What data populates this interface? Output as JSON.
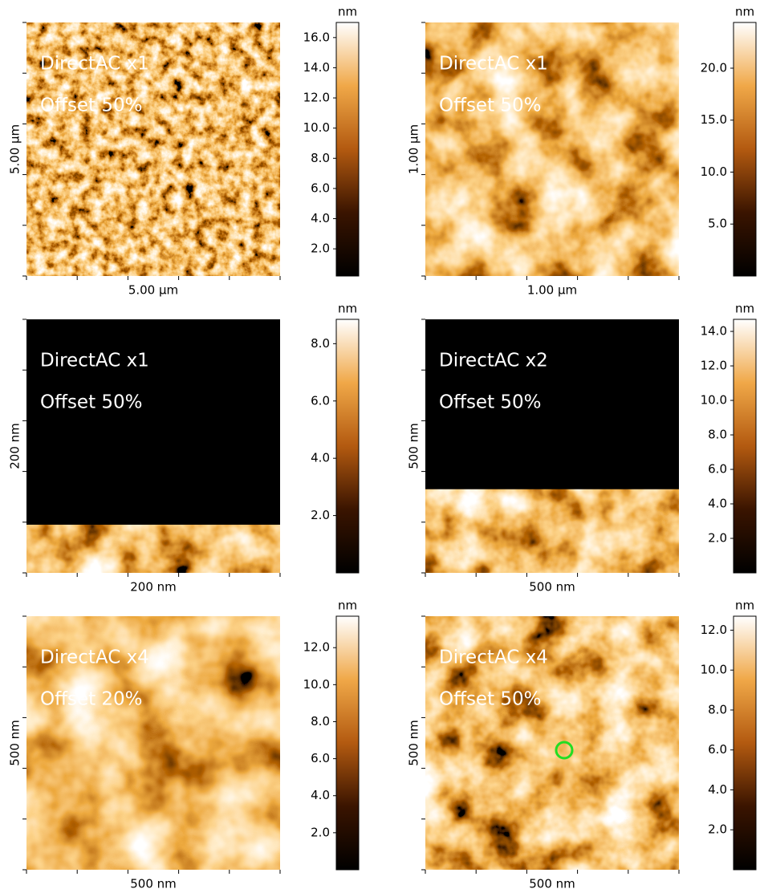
{
  "panels": [
    {
      "overlay": [
        "DirectAC x1",
        "Offset 50%"
      ],
      "y_label": "5.00 µm",
      "x_label": "5.00 µm",
      "colorbar": {
        "unit": "nm",
        "range": [
          0.2,
          17.0
        ],
        "ticks": [
          {
            "value": 2,
            "label": "2.0"
          },
          {
            "value": 4,
            "label": "4.0"
          },
          {
            "value": 6,
            "label": "6.0"
          },
          {
            "value": 8,
            "label": "8.0"
          },
          {
            "value": 10,
            "label": "10.0"
          },
          {
            "value": 12,
            "label": "12.0"
          },
          {
            "value": 14,
            "label": "14.0"
          },
          {
            "value": 16,
            "label": "16.0"
          }
        ]
      }
    },
    {
      "overlay": [
        "DirectAC x1",
        "Offset 50%"
      ],
      "y_label": "1.00 µm",
      "x_label": "1.00 µm",
      "colorbar": {
        "unit": "nm",
        "range": [
          0,
          24.4
        ],
        "ticks": [
          {
            "value": 5,
            "label": "5.0"
          },
          {
            "value": 10,
            "label": "10.0"
          },
          {
            "value": 15,
            "label": "15.0"
          },
          {
            "value": 20,
            "label": "20.0"
          }
        ]
      }
    },
    {
      "overlay": [
        "DirectAC x1",
        "Offset 50%"
      ],
      "y_label": "200 nm",
      "x_label": "200 nm",
      "colorbar": {
        "unit": "nm",
        "range": [
          0,
          8.85
        ],
        "ticks": [
          {
            "value": 2,
            "label": "2.0"
          },
          {
            "value": 4,
            "label": "4.0"
          },
          {
            "value": 6,
            "label": "6.0"
          },
          {
            "value": 8,
            "label": "8.0"
          }
        ]
      }
    },
    {
      "overlay": [
        "DirectAC x2",
        "Offset 50%"
      ],
      "y_label": "500 nm",
      "x_label": "500 nm",
      "colorbar": {
        "unit": "nm",
        "range": [
          0,
          14.7
        ],
        "ticks": [
          {
            "value": 2,
            "label": "2.0"
          },
          {
            "value": 4,
            "label": "4.0"
          },
          {
            "value": 6,
            "label": "6.0"
          },
          {
            "value": 8,
            "label": "8.0"
          },
          {
            "value": 10,
            "label": "10.0"
          },
          {
            "value": 12,
            "label": "12.0"
          },
          {
            "value": 14,
            "label": "14.0"
          }
        ]
      }
    },
    {
      "overlay": [
        "DirectAC x4",
        "Offset 20%"
      ],
      "y_label": "500 nm",
      "x_label": "500 nm",
      "colorbar": {
        "unit": "nm",
        "range": [
          0,
          13.7
        ],
        "ticks": [
          {
            "value": 2,
            "label": "2.0"
          },
          {
            "value": 4,
            "label": "4.0"
          },
          {
            "value": 6,
            "label": "6.0"
          },
          {
            "value": 8,
            "label": "8.0"
          },
          {
            "value": 10,
            "label": "10.0"
          },
          {
            "value": 12,
            "label": "12.0"
          }
        ]
      }
    },
    {
      "overlay": [
        "DirectAC x4",
        "Offset 50%"
      ],
      "y_label": "500 nm",
      "x_label": "500 nm",
      "colorbar": {
        "unit": "nm",
        "range": [
          0,
          12.7
        ],
        "ticks": [
          {
            "value": 2,
            "label": "2.0"
          },
          {
            "value": 4,
            "label": "4.0"
          },
          {
            "value": 6,
            "label": "6.0"
          },
          {
            "value": 8,
            "label": "8.0"
          },
          {
            "value": 10,
            "label": "10.0"
          },
          {
            "value": 12,
            "label": "12.0"
          }
        ]
      }
    }
  ]
}
